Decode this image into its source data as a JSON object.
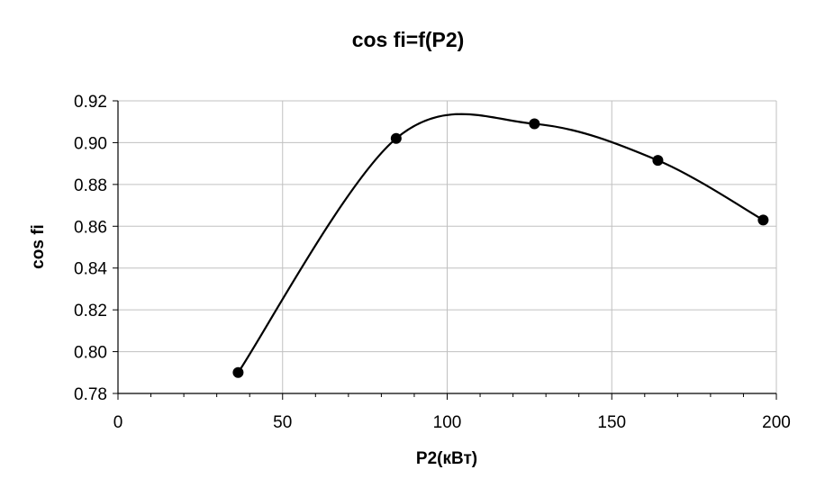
{
  "chart_data": {
    "type": "scatter",
    "title": "cos fi=f(P2)",
    "xlabel": "P2(кВт)",
    "ylabel": "cos fi",
    "xlim": [
      0,
      200
    ],
    "ylim": [
      0.78,
      0.92
    ],
    "x_ticks": [
      "0",
      "50",
      "100",
      "150",
      "200"
    ],
    "y_ticks": [
      "0.78",
      "0.80",
      "0.82",
      "0.84",
      "0.86",
      "0.88",
      "0.90",
      "0.92"
    ],
    "grid": true,
    "series": [
      {
        "points": [
          {
            "x": 36.5,
            "y": 0.79
          },
          {
            "x": 84.5,
            "y": 0.902
          },
          {
            "x": 126.5,
            "y": 0.909
          },
          {
            "x": 164,
            "y": 0.8915
          },
          {
            "x": 196,
            "y": 0.863
          }
        ],
        "smooth": true
      }
    ],
    "colors": {
      "line": "#000000",
      "marker": "#000000",
      "grid": "#c0c0c0"
    }
  }
}
